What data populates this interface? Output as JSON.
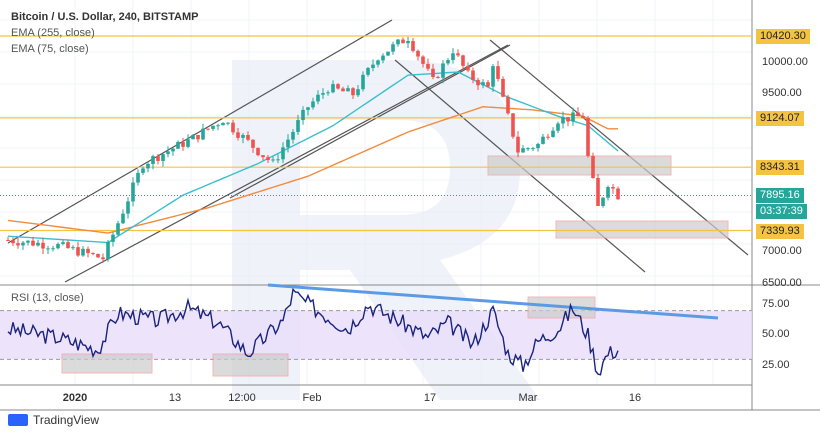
{
  "legend": {
    "title": "Bitcoin / U.S. Dollar, 240, BITSTAMP",
    "ema1": "EMA (255, close)",
    "ema2": "EMA (75, close)"
  },
  "rsi_label": "RSI (13, close)",
  "price_levels": [
    {
      "label": "10420.30",
      "price": 10420.3
    },
    {
      "label": "9124.07",
      "price": 9124.07
    },
    {
      "label": "8343.31",
      "price": 8343.31
    },
    {
      "label": "7339.93",
      "price": 7339.93
    }
  ],
  "last_price": {
    "label": "7895.16",
    "price": 7895.16,
    "countdown": "03:37:39"
  },
  "price_ticks": [
    {
      "label": "10000.00",
      "price": 10000
    },
    {
      "label": "9500.00",
      "price": 9500
    },
    {
      "label": "7000.00",
      "price": 7000
    },
    {
      "label": "6500.00",
      "price": 6500
    }
  ],
  "rsi_ticks": [
    {
      "label": "75.00",
      "v": 75
    },
    {
      "label": "50.00",
      "v": 50
    },
    {
      "label": "25.00",
      "v": 25
    }
  ],
  "x_ticks": [
    "2020",
    "13",
    "12:00",
    "Feb",
    "17",
    "Mar",
    "16"
  ],
  "footer": {
    "brand": "TradingView"
  },
  "colors": {
    "up": "#26a69a",
    "down": "#ef5350",
    "candle": "#1e3a8a",
    "ema255": "#f08c3c",
    "ema75": "#3bbfd0",
    "level": "#f5c342",
    "rsi": "#1a237e",
    "rsi_band": "#e9ddfb",
    "trend": "#5b9be6"
  },
  "chart_data": {
    "type": "candlestick",
    "price_path": [
      [
        0,
        7190
      ],
      [
        10,
        7100
      ],
      [
        19,
        6900
      ],
      [
        27,
        8400
      ],
      [
        37,
        8800
      ],
      [
        43,
        9100
      ],
      [
        50,
        8600
      ],
      [
        53,
        8400
      ],
      [
        60,
        9300
      ],
      [
        64,
        9600
      ],
      [
        69,
        9500
      ],
      [
        74,
        10100
      ],
      [
        80,
        10400
      ],
      [
        85,
        9700
      ],
      [
        89,
        10200
      ],
      [
        92,
        9800
      ],
      [
        96,
        9600
      ],
      [
        97,
        10000
      ],
      [
        99,
        9400
      ],
      [
        102,
        8600
      ],
      [
        106,
        8700
      ],
      [
        110,
        9100
      ],
      [
        115,
        9150
      ],
      [
        116,
        8500
      ],
      [
        118,
        7700
      ],
      [
        120,
        8100
      ],
      [
        122,
        7900
      ]
    ],
    "ema255": [
      [
        0,
        7500
      ],
      [
        20,
        7300
      ],
      [
        40,
        7700
      ],
      [
        60,
        8200
      ],
      [
        80,
        8900
      ],
      [
        95,
        9300
      ],
      [
        105,
        9250
      ],
      [
        115,
        9150
      ],
      [
        120,
        8950
      ]
    ],
    "ema75": [
      [
        0,
        7250
      ],
      [
        20,
        7150
      ],
      [
        35,
        7900
      ],
      [
        50,
        8400
      ],
      [
        65,
        9000
      ],
      [
        80,
        9800
      ],
      [
        90,
        9850
      ],
      [
        100,
        9450
      ],
      [
        110,
        9150
      ],
      [
        116,
        9000
      ],
      [
        122,
        8600
      ]
    ],
    "rsi": [
      [
        0,
        55
      ],
      [
        10,
        48
      ],
      [
        18,
        38
      ],
      [
        22,
        68
      ],
      [
        30,
        62
      ],
      [
        36,
        72
      ],
      [
        42,
        60
      ],
      [
        48,
        35
      ],
      [
        55,
        62
      ],
      [
        57,
        84
      ],
      [
        62,
        70
      ],
      [
        68,
        55
      ],
      [
        72,
        75
      ],
      [
        78,
        62
      ],
      [
        84,
        48
      ],
      [
        88,
        60
      ],
      [
        93,
        42
      ],
      [
        97,
        70
      ],
      [
        100,
        35
      ],
      [
        103,
        25
      ],
      [
        106,
        45
      ],
      [
        110,
        55
      ],
      [
        113,
        72
      ],
      [
        116,
        50
      ],
      [
        118,
        20
      ],
      [
        120,
        35
      ],
      [
        122,
        38
      ]
    ]
  }
}
